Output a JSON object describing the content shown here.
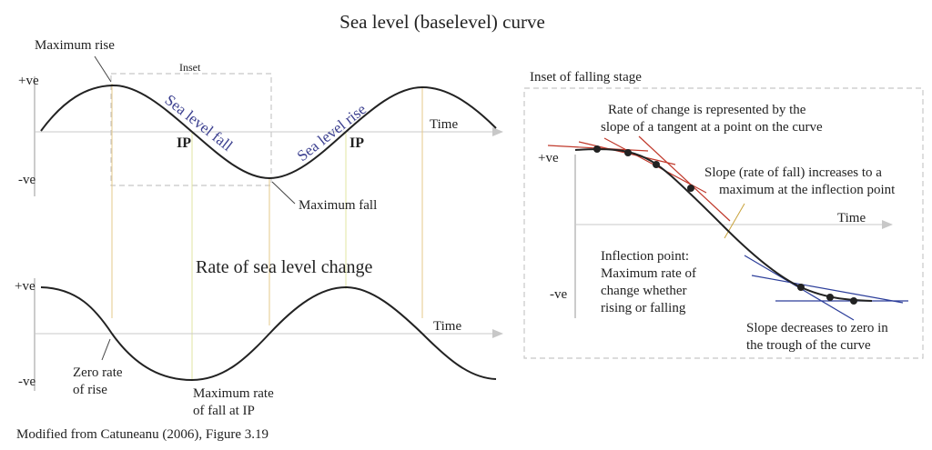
{
  "title": "Sea level (baselevel) curve",
  "left_top": {
    "y_pos": "+ve",
    "y_neg": "-ve",
    "time": "Time",
    "maximum_rise": "Maximum rise",
    "maximum_fall": "Maximum fall",
    "inset_label": "Inset",
    "sea_level_fall": "Sea level fall",
    "sea_level_rise": "Sea level rise",
    "ip_left": "IP",
    "ip_right": "IP"
  },
  "left_bottom": {
    "title": "Rate of sea level change",
    "y_pos": "+ve",
    "y_neg": "-ve",
    "time": "Time",
    "zero_rate": [
      "Zero rate",
      "of rise"
    ],
    "max_rate": [
      "Maximum rate",
      "of fall at IP"
    ]
  },
  "inset": {
    "title": "Inset of falling stage",
    "y_pos": "+ve",
    "y_neg": "-ve",
    "time": "Time",
    "rate_note": [
      "Rate of change is represented by the",
      "slope of a tangent at a point on the curve"
    ],
    "slope_increase": [
      "Slope (rate of fall) increases to a",
      "maximum at the inflection point"
    ],
    "inflection": [
      "Inflection point:",
      "Maximum rate of",
      "change whether",
      "rising or falling"
    ],
    "slope_decrease": [
      "Slope decreases to zero in",
      "the trough of the curve"
    ]
  },
  "caption": "Modified from Catuneanu (2006), Figure 3.19",
  "colors": {
    "curve": "#222222",
    "red_tangent": "#c0392b",
    "blue_tangent": "#2c3e9a",
    "guide_line": "#e6c98a",
    "dashed_box": "#c8c8c8",
    "axis": "#c8c8c8",
    "label_blue": "#3b3f8f"
  }
}
